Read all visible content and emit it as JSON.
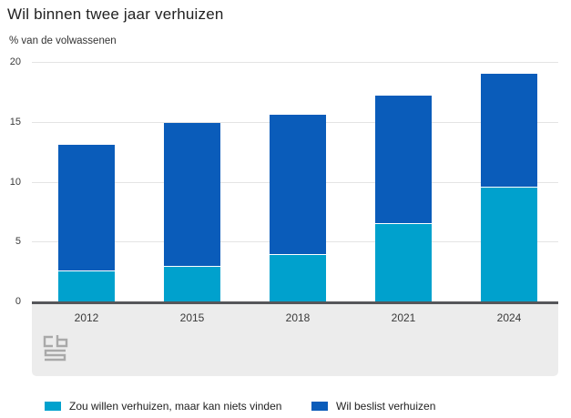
{
  "title": "Wil binnen twee jaar verhuizen",
  "subtitle": "% van de volwassenen",
  "chart_data": {
    "type": "bar",
    "stacked": true,
    "title": "Wil binnen twee jaar verhuizen",
    "ylabel": "% van de volwassenen",
    "xlabel": "",
    "categories": [
      "2012",
      "2015",
      "2018",
      "2021",
      "2024"
    ],
    "series": [
      {
        "name": "Zou willen verhuizen, maar kan niets vinden",
        "color": "#00a1cd",
        "values": [
          2.5,
          2.9,
          3.9,
          6.5,
          9.5
        ]
      },
      {
        "name": "Wil beslist verhuizen",
        "color": "#0a5cba",
        "values": [
          10.5,
          11.9,
          11.6,
          10.6,
          9.4
        ]
      }
    ],
    "totals": [
      13.0,
      14.8,
      15.5,
      17.1,
      18.9
    ],
    "ylim": [
      0,
      20
    ],
    "yticks": [
      0,
      5,
      10,
      15,
      20
    ],
    "grid": true,
    "legend_position": "bottom"
  },
  "branding": {
    "logo": "cbs"
  },
  "colors": {
    "axis_line": "#55565a",
    "gridline": "#e4e4e4",
    "footer_band": "#ececec",
    "logo_gray": "#a9a9a9",
    "text": "#383838"
  }
}
